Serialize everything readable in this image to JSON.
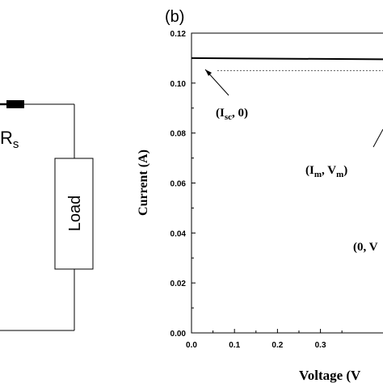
{
  "circuit": {
    "resistor_symbol": "R",
    "resistor_subscript": "s",
    "load_label": "Load"
  },
  "chart_data": {
    "type": "line",
    "panel_label": "(b)",
    "xlabel": "Voltage (V",
    "ylabel": "Current (A)",
    "xlim": [
      0,
      0.47
    ],
    "ylim": [
      0,
      0.12
    ],
    "x_ticks": [
      "0.0",
      "0.1",
      "0.2",
      "0.3"
    ],
    "y_ticks": [
      "0.00",
      "0.02",
      "0.04",
      "0.06",
      "0.08",
      "0.10",
      "0.12"
    ],
    "series": [
      {
        "style": "solid",
        "color": "#000000",
        "points": [
          [
            0,
            0.11
          ],
          [
            0.47,
            0.1095
          ]
        ]
      },
      {
        "style": "dotted",
        "color": "#555555",
        "points": [
          [
            0.06,
            0.105
          ],
          [
            0.47,
            0.105
          ]
        ]
      }
    ],
    "annotations": [
      {
        "main": "(I",
        "sub": "sc",
        "tail": ", 0)"
      },
      {
        "main": "(I",
        "sub": "m",
        "mid": ", V",
        "sub2": "m",
        "tail": ")"
      },
      {
        "main": "(0, V",
        "sub": "",
        "tail": ""
      }
    ]
  }
}
